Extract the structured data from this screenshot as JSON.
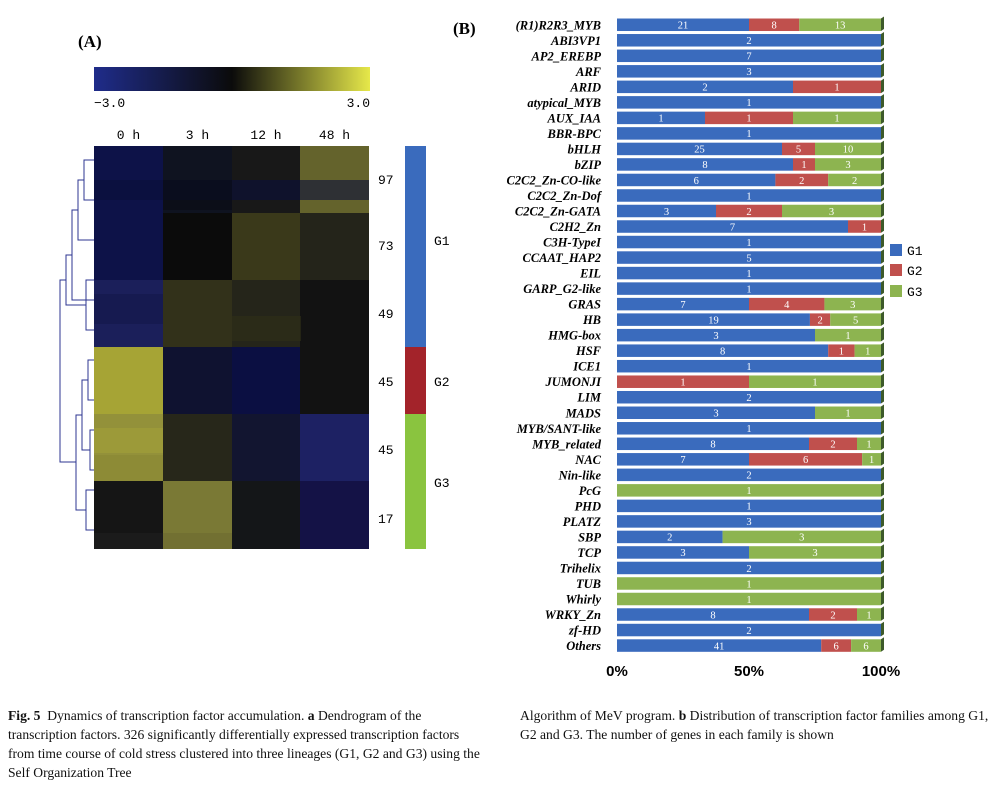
{
  "panel_a": {
    "label": "(A)",
    "scale_min": "−3.0",
    "scale_max": "3.0",
    "timepoints": [
      "0 h",
      "3 h",
      "12 h",
      "48 h"
    ],
    "cluster_counts": [
      "97",
      "73",
      "49",
      "45",
      "45",
      "17"
    ],
    "groups": [
      "G1",
      "G2",
      "G3"
    ],
    "group_colors": {
      "G1": "#3a6bbd",
      "G2": "#a3232a",
      "G3": "#8ac43f"
    }
  },
  "panel_b": {
    "label": "(B)",
    "legend": [
      "G1",
      "G2",
      "G3"
    ]
  },
  "chart_data": {
    "type": "bar",
    "orientation": "horizontal",
    "stacking": "percent",
    "categories": [
      "(R1)R2R3_MYB",
      "ABI3VP1",
      "AP2_EREBP",
      "ARF",
      "ARID",
      "atypical_MYB",
      "AUX_IAA",
      "BBR-BPC",
      "bHLH",
      "bZIP",
      "C2C2_Zn-CO-like",
      "C2C2_Zn-Dof",
      "C2C2_Zn-GATA",
      "C2H2_Zn",
      "C3H-TypeI",
      "CCAAT_HAP2",
      "EIL",
      "GARP_G2-like",
      "GRAS",
      "HB",
      "HMG-box",
      "HSF",
      "ICE1",
      "JUMONJI",
      "LIM",
      "MADS",
      "MYB/SANT-like",
      "MYB_related",
      "NAC",
      "Nin-like",
      "PcG",
      "PHD",
      "PLATZ",
      "SBP",
      "TCP",
      "Trihelix",
      "TUB",
      "Whirly",
      "WRKY_Zn",
      "zf-HD",
      "Others"
    ],
    "series": [
      {
        "name": "G1",
        "color": "#3a6bbd",
        "values": [
          21,
          2,
          7,
          3,
          2,
          1,
          1,
          1,
          25,
          8,
          6,
          1,
          3,
          7,
          1,
          5,
          1,
          1,
          7,
          19,
          3,
          8,
          1,
          0,
          2,
          3,
          1,
          8,
          7,
          2,
          0,
          1,
          3,
          2,
          3,
          2,
          0,
          0,
          8,
          2,
          41
        ]
      },
      {
        "name": "G2",
        "color": "#c0504d",
        "values": [
          8,
          0,
          0,
          0,
          1,
          0,
          1,
          0,
          5,
          1,
          2,
          0,
          2,
          1,
          0,
          0,
          0,
          0,
          4,
          2,
          0,
          1,
          0,
          1,
          0,
          0,
          0,
          2,
          6,
          0,
          0,
          0,
          0,
          0,
          0,
          0,
          0,
          0,
          2,
          0,
          6
        ]
      },
      {
        "name": "G3",
        "color": "#8db450",
        "values": [
          13,
          0,
          0,
          0,
          0,
          0,
          1,
          0,
          10,
          3,
          2,
          0,
          3,
          0,
          0,
          0,
          0,
          0,
          3,
          5,
          1,
          1,
          0,
          1,
          0,
          1,
          0,
          1,
          1,
          0,
          1,
          0,
          0,
          3,
          3,
          0,
          1,
          1,
          1,
          0,
          6
        ]
      }
    ],
    "xticks": [
      "0%",
      "50%",
      "100%"
    ],
    "xlim": [
      0,
      100
    ],
    "legend_position": "right"
  },
  "caption": {
    "fig_label": "Fig. 5",
    "left_text": [
      {
        "t": "Dynamics of transcription factor accumulation. ",
        "b": false
      },
      {
        "t": "a",
        "b": true
      },
      {
        "t": " Dendrogram of the transcription factors. 326 significantly differentially expressed transcription factors from time course of cold stress clustered into three lineages (G1, G2 and G3) using the Self Organization Tree",
        "b": false
      }
    ],
    "right_text": [
      {
        "t": "Algorithm of MeV program. ",
        "b": false
      },
      {
        "t": "b",
        "b": true
      },
      {
        "t": " Distribution of transcription factor families among G1, G2 and G3. The number of genes in each family is shown",
        "b": false
      }
    ]
  }
}
